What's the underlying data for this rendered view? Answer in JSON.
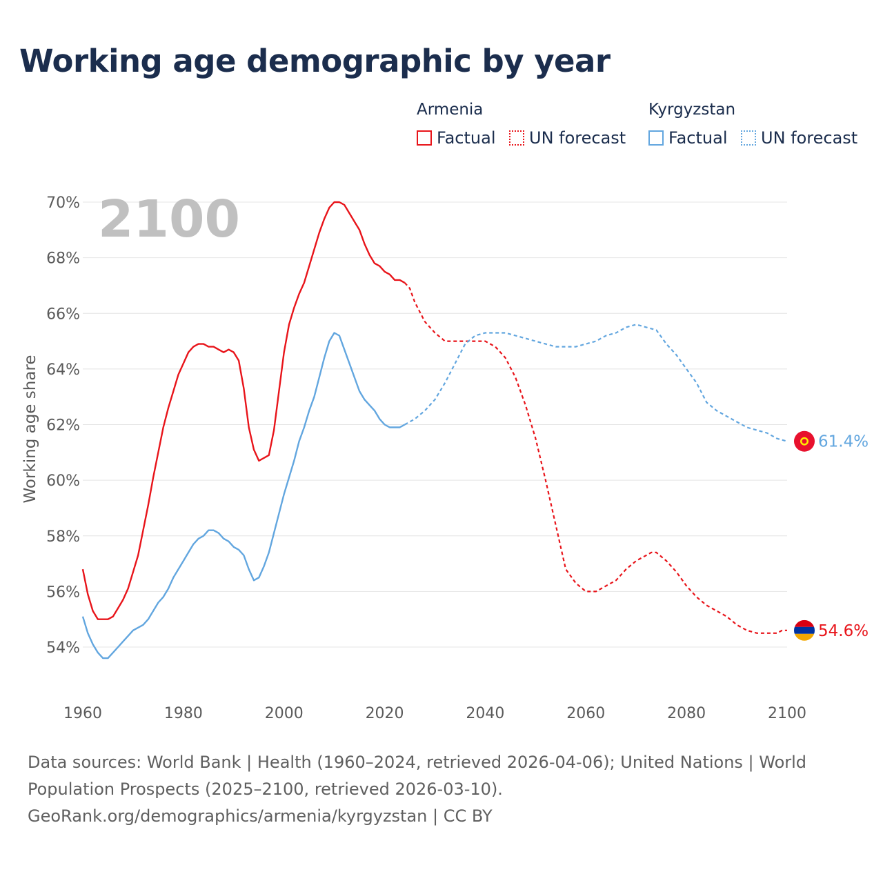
{
  "title": "Working age demographic by year",
  "legend": {
    "groups": [
      {
        "name": "Armenia",
        "factual_label": "Factual",
        "forecast_label": "UN forecast",
        "color": "#e8141a"
      },
      {
        "name": "Kyrgyzstan",
        "factual_label": "Factual",
        "forecast_label": "UN forecast",
        "color": "#62a6df"
      }
    ]
  },
  "year_label": "2100",
  "footer": {
    "sources_line1": "Data sources: World Bank | Health (1960–2024, retrieved 2026-04-06); United Nations | World",
    "sources_line2": "Population Prospects (2025–2100, retrieved 2026-03-10).",
    "attribution": "GeoRank.org/demographics/armenia/kyrgyzstan | CC BY"
  },
  "chart_data": {
    "type": "line",
    "title": "Working age demographic by year",
    "xlabel": "",
    "ylabel": "Working age share",
    "xlim": [
      1960,
      2100
    ],
    "ylim": [
      53,
      70.5
    ],
    "xticks": [
      1960,
      1980,
      2000,
      2020,
      2040,
      2060,
      2080,
      2100
    ],
    "yticks": [
      54,
      56,
      58,
      60,
      62,
      64,
      66,
      68,
      70
    ],
    "ytick_labels": [
      "54%",
      "56%",
      "58%",
      "60%",
      "62%",
      "64%",
      "66%",
      "68%",
      "70%"
    ],
    "grid": true,
    "series": [
      {
        "name": "Armenia",
        "color": "#e8141a",
        "end_label": "54.6%",
        "factual": {
          "x": [
            1960,
            1961,
            1962,
            1963,
            1964,
            1965,
            1966,
            1967,
            1968,
            1969,
            1970,
            1971,
            1972,
            1973,
            1974,
            1975,
            1976,
            1977,
            1978,
            1979,
            1980,
            1981,
            1982,
            1983,
            1984,
            1985,
            1986,
            1987,
            1988,
            1989,
            1990,
            1991,
            1992,
            1993,
            1994,
            1995,
            1996,
            1997,
            1998,
            1999,
            2000,
            2001,
            2002,
            2003,
            2004,
            2005,
            2006,
            2007,
            2008,
            2009,
            2010,
            2011,
            2012,
            2013,
            2014,
            2015,
            2016,
            2017,
            2018,
            2019,
            2020,
            2021,
            2022,
            2023,
            2024
          ],
          "y": [
            56.8,
            55.9,
            55.3,
            55.0,
            55.0,
            55.0,
            55.1,
            55.4,
            55.7,
            56.1,
            56.7,
            57.3,
            58.2,
            59.1,
            60.1,
            61.0,
            61.9,
            62.6,
            63.2,
            63.8,
            64.2,
            64.6,
            64.8,
            64.9,
            64.9,
            64.8,
            64.8,
            64.7,
            64.6,
            64.7,
            64.6,
            64.3,
            63.3,
            61.9,
            61.1,
            60.7,
            60.8,
            60.9,
            61.8,
            63.2,
            64.6,
            65.6,
            66.2,
            66.7,
            67.1,
            67.7,
            68.3,
            68.9,
            69.4,
            69.8,
            70.0,
            70.0,
            69.9,
            69.6,
            69.3,
            69.0,
            68.5,
            68.1,
            67.8,
            67.7,
            67.5,
            67.4,
            67.2,
            67.2,
            67.1
          ]
        },
        "forecast": {
          "x": [
            2024,
            2025,
            2026,
            2028,
            2030,
            2032,
            2034,
            2036,
            2038,
            2040,
            2042,
            2044,
            2046,
            2048,
            2050,
            2052,
            2054,
            2056,
            2058,
            2060,
            2062,
            2064,
            2066,
            2068,
            2070,
            2072,
            2073,
            2074,
            2076,
            2078,
            2080,
            2082,
            2084,
            2086,
            2088,
            2090,
            2092,
            2094,
            2096,
            2098,
            2099,
            2100
          ],
          "y": [
            67.1,
            66.9,
            66.4,
            65.7,
            65.3,
            65.0,
            65.0,
            65.0,
            65.0,
            65.0,
            64.8,
            64.4,
            63.7,
            62.7,
            61.5,
            60.0,
            58.4,
            56.8,
            56.3,
            56.0,
            56.0,
            56.2,
            56.4,
            56.8,
            57.1,
            57.3,
            57.4,
            57.4,
            57.1,
            56.7,
            56.2,
            55.8,
            55.5,
            55.3,
            55.1,
            54.8,
            54.6,
            54.5,
            54.5,
            54.5,
            54.6,
            54.6
          ]
        }
      },
      {
        "name": "Kyrgyzstan",
        "color": "#62a6df",
        "end_label": "61.4%",
        "factual": {
          "x": [
            1960,
            1961,
            1962,
            1963,
            1964,
            1965,
            1966,
            1967,
            1968,
            1969,
            1970,
            1971,
            1972,
            1973,
            1974,
            1975,
            1976,
            1977,
            1978,
            1979,
            1980,
            1981,
            1982,
            1983,
            1984,
            1985,
            1986,
            1987,
            1988,
            1989,
            1990,
            1991,
            1992,
            1993,
            1994,
            1995,
            1996,
            1997,
            1998,
            1999,
            2000,
            2001,
            2002,
            2003,
            2004,
            2005,
            2006,
            2007,
            2008,
            2009,
            2010,
            2011,
            2012,
            2013,
            2014,
            2015,
            2016,
            2017,
            2018,
            2019,
            2020,
            2021,
            2022,
            2023,
            2024
          ],
          "y": [
            55.1,
            54.5,
            54.1,
            53.8,
            53.6,
            53.6,
            53.8,
            54.0,
            54.2,
            54.4,
            54.6,
            54.7,
            54.8,
            55.0,
            55.3,
            55.6,
            55.8,
            56.1,
            56.5,
            56.8,
            57.1,
            57.4,
            57.7,
            57.9,
            58.0,
            58.2,
            58.2,
            58.1,
            57.9,
            57.8,
            57.6,
            57.5,
            57.3,
            56.8,
            56.4,
            56.5,
            56.9,
            57.4,
            58.1,
            58.8,
            59.5,
            60.1,
            60.7,
            61.4,
            61.9,
            62.5,
            63.0,
            63.7,
            64.4,
            65.0,
            65.3,
            65.2,
            64.7,
            64.2,
            63.7,
            63.2,
            62.9,
            62.7,
            62.5,
            62.2,
            62.0,
            61.9,
            61.9,
            61.9,
            62.0
          ]
        },
        "forecast": {
          "x": [
            2024,
            2026,
            2028,
            2030,
            2032,
            2034,
            2036,
            2038,
            2040,
            2042,
            2044,
            2046,
            2048,
            2050,
            2052,
            2054,
            2056,
            2058,
            2060,
            2062,
            2064,
            2066,
            2068,
            2070,
            2072,
            2074,
            2076,
            2078,
            2080,
            2082,
            2084,
            2086,
            2088,
            2090,
            2092,
            2094,
            2096,
            2098,
            2100
          ],
          "y": [
            62.0,
            62.2,
            62.5,
            62.9,
            63.5,
            64.2,
            64.9,
            65.2,
            65.3,
            65.3,
            65.3,
            65.2,
            65.1,
            65.0,
            64.9,
            64.8,
            64.8,
            64.8,
            64.9,
            65.0,
            65.2,
            65.3,
            65.5,
            65.6,
            65.5,
            65.4,
            64.9,
            64.5,
            64.0,
            63.5,
            62.8,
            62.5,
            62.3,
            62.1,
            61.9,
            61.8,
            61.7,
            61.5,
            61.4
          ]
        }
      }
    ]
  }
}
